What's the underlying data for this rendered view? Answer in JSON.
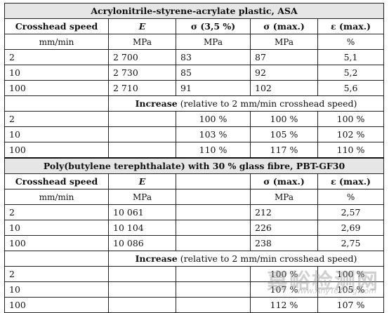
{
  "asa": {
    "title": "Acrylonitrile-styrene-acrylate plastic, ASA",
    "headers": [
      "Crosshead speed",
      "E",
      "σ (3,5 %)",
      "σ (max.)",
      "ε (max.)"
    ],
    "units": [
      "mm/min",
      "MPa",
      "MPa",
      "MPa",
      "%"
    ],
    "rows": [
      [
        "2",
        "2 700",
        "83",
        "87",
        "5,1"
      ],
      [
        "10",
        "2 730",
        "85",
        "92",
        "5,2"
      ],
      [
        "100",
        "2 710",
        "91",
        "102",
        "5,6"
      ]
    ],
    "increase_bold": "Increase",
    "increase_rest": " (relative to 2 mm/min crosshead speed)",
    "increase_rows": [
      [
        "2",
        "100 %",
        "100 %",
        "100 %"
      ],
      [
        "10",
        "103 %",
        "105 %",
        "102 %"
      ],
      [
        "100",
        "110 %",
        "117 %",
        "110 %"
      ]
    ]
  },
  "pbt": {
    "title": "Poly(butylene terephthalate) with 30 % glass fibre, PBT-GF30",
    "headers": [
      "Crosshead speed",
      "E",
      "",
      "σ (max.)",
      "ε (max.)"
    ],
    "units": [
      "mm/min",
      "MPa",
      "",
      "MPa",
      "%"
    ],
    "rows": [
      [
        "2",
        "10 061",
        "",
        "212",
        "2,57"
      ],
      [
        "10",
        "10 104",
        "",
        "226",
        "2,69"
      ],
      [
        "100",
        "10 086",
        "",
        "238",
        "2,75"
      ]
    ],
    "increase_bold": "Increase",
    "increase_rest": " (relative to 2 mm/min crosshead speed)",
    "increase_rows": [
      [
        "2",
        "",
        "100 %",
        "100 %"
      ],
      [
        "10",
        "",
        "107 %",
        "105 %"
      ],
      [
        "100",
        "",
        "112 %",
        "107 %"
      ]
    ]
  },
  "watermark": {
    "cn": "嘉峪检测网",
    "url": "www.AnyTesting.com"
  }
}
